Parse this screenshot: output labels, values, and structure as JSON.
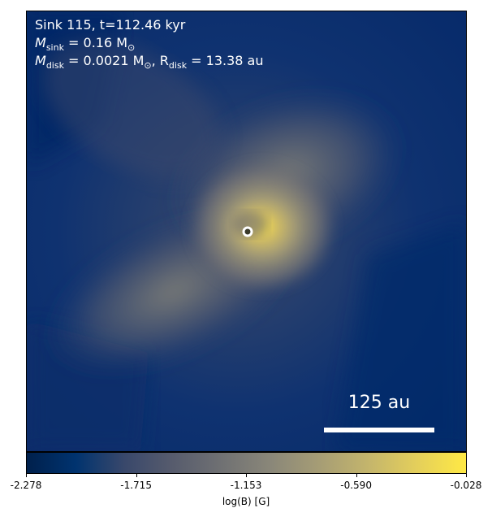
{
  "chart_data": {
    "type": "heatmap",
    "title_lines": {
      "line1": "Sink 115, t=112.46 kyr",
      "line2_pre": "M",
      "line2_sub": "sink",
      "line2_post": " = 0.16 M",
      "line2_sun": "⊙",
      "line3_pre": "M",
      "line3_sub": "disk",
      "line3_mid": " = 0.0021 M",
      "line3_sun": "⊙",
      "line3_sep": ", R",
      "line3_sub2": "disk",
      "line3_post": " = 13.38 au"
    },
    "scale_bar_label": "125 au",
    "colorbar": {
      "label": "log(B) [G]",
      "vmin": -2.278,
      "vmax": -0.028,
      "ticks": [
        -2.278,
        -1.715,
        -1.153,
        -0.59,
        -0.028
      ],
      "tick_labels": [
        "-2.278",
        "-1.715",
        "-1.153",
        "-0.590",
        "-0.028"
      ],
      "colormap": "cividis",
      "colors": [
        "#00204c",
        "#00336f",
        "#39486b",
        "#575c6d",
        "#707173",
        "#8a8779",
        "#a69d75",
        "#c4b56c",
        "#e4cf5b",
        "#ffe945"
      ]
    },
    "sink_marker": {
      "fill": "#3a3a2a",
      "stroke": "#ffffff"
    }
  }
}
